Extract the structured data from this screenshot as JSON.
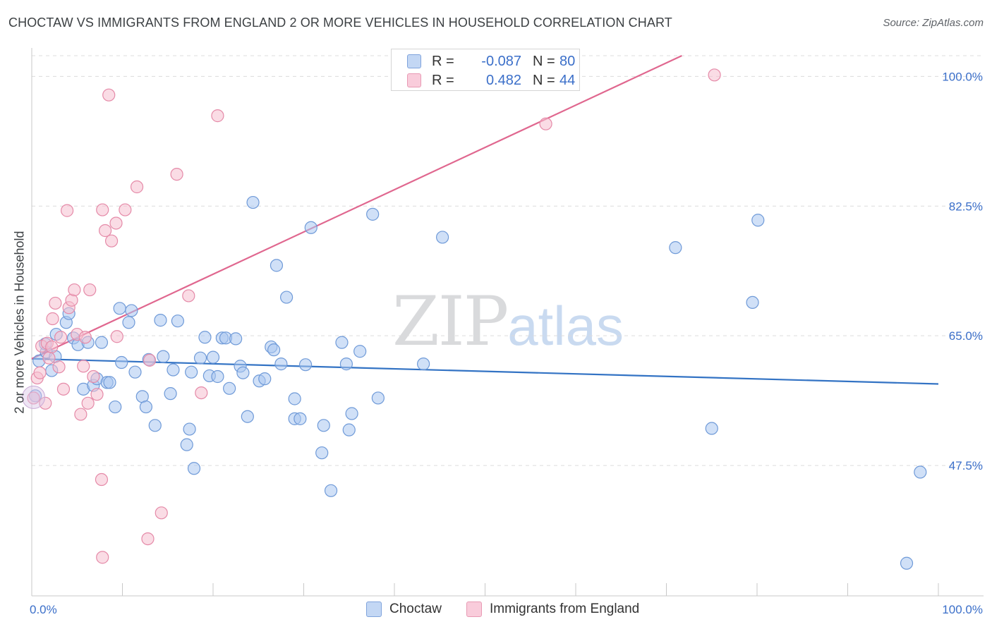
{
  "title": "CHOCTAW VS IMMIGRANTS FROM ENGLAND 2 OR MORE VEHICLES IN HOUSEHOLD CORRELATION CHART",
  "source": "Source: ZipAtlas.com",
  "watermark": {
    "zip": "ZIP",
    "atlas": "atlas"
  },
  "colors": {
    "blue_fill": "#a9c6f0",
    "blue_stroke": "#6f9ad8",
    "blue_line": "#3373c4",
    "pink_fill": "#f5bfd0",
    "pink_stroke": "#e58aa8",
    "pink_line": "#e0678f",
    "tick_label": "#3b6fc9",
    "grid": "#dcdcdc"
  },
  "legend": {
    "rows": [
      {
        "label": "R =",
        "r": "-0.087",
        "n_label": "N =",
        "n": "80"
      },
      {
        "label": "R =",
        "r": "0.482",
        "n_label": "N =",
        "n": "44"
      }
    ]
  },
  "bottom_legend": {
    "choctaw": "Choctaw",
    "england": "Immigrants from England"
  },
  "chart_data": {
    "type": "scatter",
    "title": "CHOCTAW VS IMMIGRANTS FROM ENGLAND 2 OR MORE VEHICLES IN HOUSEHOLD CORRELATION CHART",
    "xlabel": "",
    "ylabel": "2 or more Vehicles in Household",
    "xlim": [
      0,
      100
    ],
    "ylim": [
      29.9,
      102.8
    ],
    "x_tick_labels": [
      "0.0%",
      "100.0%"
    ],
    "y_ticks": [
      47.5,
      65.0,
      82.5,
      100.0
    ],
    "y_tick_labels": [
      "47.5%",
      "65.0%",
      "82.5%",
      "100.0%"
    ],
    "grid": true,
    "series": [
      {
        "name": "Choctaw",
        "r": -0.087,
        "n": 80,
        "trend": {
          "x": [
            0,
            100
          ],
          "y": [
            61.9,
            58.5
          ]
        },
        "points": [
          [
            0.4,
            56.9
          ],
          [
            0.8,
            61.6
          ],
          [
            1.6,
            62.8
          ],
          [
            1.5,
            63.9
          ],
          [
            2.2,
            60.3
          ],
          [
            2.6,
            62.2
          ],
          [
            2.7,
            65.2
          ],
          [
            3.8,
            66.8
          ],
          [
            4.1,
            68.0
          ],
          [
            4.6,
            64.7
          ],
          [
            5.1,
            63.8
          ],
          [
            6.2,
            64.1
          ],
          [
            5.7,
            57.8
          ],
          [
            6.8,
            58.3
          ],
          [
            7.2,
            59.2
          ],
          [
            7.7,
            64.1
          ],
          [
            8.3,
            58.7
          ],
          [
            8.6,
            58.7
          ],
          [
            9.2,
            55.4
          ],
          [
            9.7,
            68.7
          ],
          [
            9.9,
            61.4
          ],
          [
            10.7,
            66.8
          ],
          [
            11.0,
            68.4
          ],
          [
            11.4,
            60.1
          ],
          [
            12.2,
            56.8
          ],
          [
            12.6,
            55.4
          ],
          [
            12.9,
            61.8
          ],
          [
            13.6,
            52.9
          ],
          [
            14.2,
            67.1
          ],
          [
            14.5,
            62.2
          ],
          [
            15.3,
            57.2
          ],
          [
            15.6,
            60.4
          ],
          [
            16.1,
            67.0
          ],
          [
            17.1,
            50.3
          ],
          [
            17.4,
            52.4
          ],
          [
            17.6,
            60.1
          ],
          [
            17.9,
            47.1
          ],
          [
            18.6,
            62.0
          ],
          [
            19.1,
            64.8
          ],
          [
            19.6,
            59.6
          ],
          [
            20.0,
            62.1
          ],
          [
            20.5,
            59.5
          ],
          [
            21.0,
            64.7
          ],
          [
            21.4,
            64.7
          ],
          [
            21.8,
            57.9
          ],
          [
            22.5,
            64.6
          ],
          [
            23.0,
            60.9
          ],
          [
            23.3,
            60.0
          ],
          [
            23.8,
            54.1
          ],
          [
            24.4,
            83.0
          ],
          [
            25.1,
            58.9
          ],
          [
            25.7,
            59.2
          ],
          [
            26.4,
            63.5
          ],
          [
            26.7,
            63.1
          ],
          [
            27.0,
            74.5
          ],
          [
            27.5,
            61.2
          ],
          [
            28.1,
            70.2
          ],
          [
            29.0,
            56.5
          ],
          [
            29.0,
            53.8
          ],
          [
            29.6,
            53.8
          ],
          [
            30.2,
            61.1
          ],
          [
            30.8,
            79.6
          ],
          [
            32.0,
            49.2
          ],
          [
            32.2,
            52.9
          ],
          [
            33.0,
            44.1
          ],
          [
            34.2,
            64.1
          ],
          [
            34.7,
            61.2
          ],
          [
            35.0,
            52.3
          ],
          [
            35.3,
            54.5
          ],
          [
            36.2,
            62.9
          ],
          [
            37.6,
            81.4
          ],
          [
            38.2,
            56.6
          ],
          [
            43.2,
            61.2
          ],
          [
            45.3,
            78.3
          ],
          [
            71.0,
            76.9
          ],
          [
            75.0,
            52.5
          ],
          [
            79.5,
            69.5
          ],
          [
            80.1,
            80.6
          ],
          [
            98.0,
            46.6
          ],
          [
            96.5,
            34.3
          ]
        ]
      },
      {
        "name": "Immigrants from England",
        "r": 0.482,
        "n": 44,
        "trend": {
          "x": [
            0,
            71.7
          ],
          "y": [
            61.9,
            102.8
          ]
        },
        "points": [
          [
            0.2,
            56.6
          ],
          [
            0.6,
            59.3
          ],
          [
            0.9,
            60.0
          ],
          [
            1.1,
            63.6
          ],
          [
            1.5,
            55.9
          ],
          [
            1.7,
            64.0
          ],
          [
            1.9,
            62.0
          ],
          [
            2.2,
            63.5
          ],
          [
            2.3,
            67.3
          ],
          [
            2.6,
            69.4
          ],
          [
            3.0,
            60.8
          ],
          [
            3.2,
            64.8
          ],
          [
            3.5,
            57.8
          ],
          [
            3.9,
            81.9
          ],
          [
            4.1,
            68.8
          ],
          [
            4.4,
            69.8
          ],
          [
            4.7,
            71.2
          ],
          [
            5.0,
            65.2
          ],
          [
            5.4,
            54.4
          ],
          [
            5.7,
            60.9
          ],
          [
            5.9,
            64.8
          ],
          [
            6.2,
            55.9
          ],
          [
            6.4,
            71.2
          ],
          [
            6.8,
            59.5
          ],
          [
            7.2,
            57.1
          ],
          [
            7.7,
            45.6
          ],
          [
            7.8,
            35.1
          ],
          [
            7.8,
            82.0
          ],
          [
            8.1,
            79.2
          ],
          [
            8.5,
            97.5
          ],
          [
            8.8,
            77.8
          ],
          [
            9.3,
            80.2
          ],
          [
            9.4,
            64.9
          ],
          [
            10.3,
            82.0
          ],
          [
            11.6,
            85.1
          ],
          [
            12.8,
            37.6
          ],
          [
            13.0,
            61.7
          ],
          [
            14.3,
            41.1
          ],
          [
            16.0,
            86.8
          ],
          [
            17.3,
            70.4
          ],
          [
            18.7,
            57.3
          ],
          [
            20.5,
            94.7
          ],
          [
            56.7,
            93.6
          ],
          [
            75.3,
            100.2
          ]
        ]
      }
    ]
  }
}
